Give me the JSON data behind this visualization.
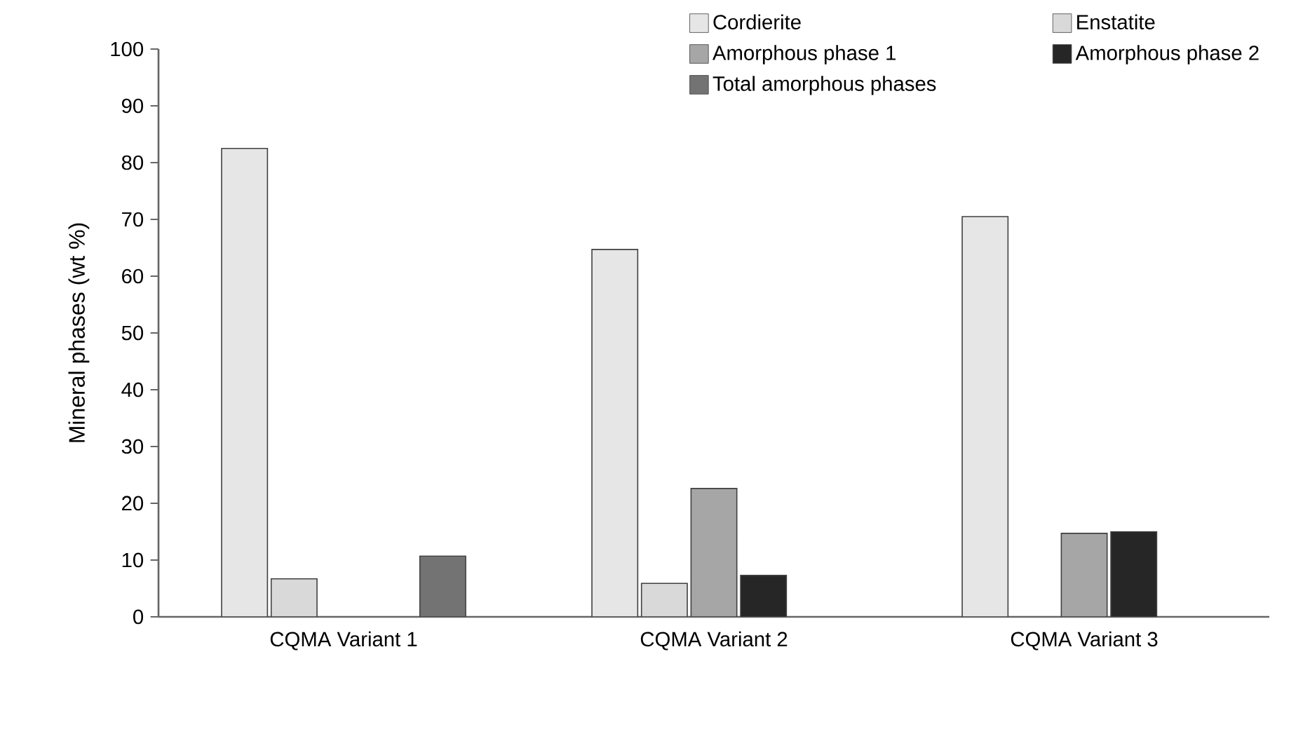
{
  "chart_data": {
    "type": "bar",
    "ylabel": "Mineral phases (wt %)",
    "categories": [
      "CQMA Variant 1",
      "CQMA Variant 2",
      "CQMA Variant 3"
    ],
    "series": [
      {
        "name": "Cordierite",
        "color": "#e7e6e6",
        "values": [
          82.5,
          64.7,
          70.5
        ]
      },
      {
        "name": "Enstatite",
        "color": "#d9d9d9",
        "values": [
          6.7,
          5.9,
          null
        ]
      },
      {
        "name": "Amorphous phase 1",
        "color": "#a6a6a6",
        "values": [
          null,
          22.6,
          14.7
        ]
      },
      {
        "name": "Amorphous phase 2",
        "color": "#262626",
        "values": [
          null,
          7.3,
          15.0
        ]
      },
      {
        "name": "Total amorphous phases",
        "color": "#737373",
        "values": [
          10.7,
          null,
          null
        ]
      }
    ],
    "ylim": [
      0,
      100
    ],
    "yticks": [
      0,
      10,
      20,
      30,
      40,
      50,
      60,
      70,
      80,
      90,
      100
    ],
    "grid": false,
    "legend": "top right"
  }
}
